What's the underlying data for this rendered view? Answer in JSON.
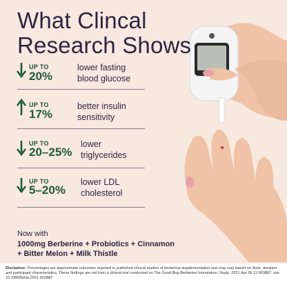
{
  "header": {
    "title": [
      "What Clincal",
      "Research Shows"
    ]
  },
  "stats": [
    {
      "prefix": "UP TO",
      "value": "20%",
      "description": [
        "lower fasting",
        "blood glucose"
      ]
    },
    {
      "prefix": "UP TO",
      "value": "17%",
      "description": [
        "better insulin",
        "sensitivity"
      ]
    },
    {
      "prefix": "UP TO",
      "value": "20–25%",
      "description": [
        "lower",
        "triglycerides"
      ]
    },
    {
      "prefix": "UP TO",
      "value": "5–20%",
      "description": [
        "lower LDL",
        "cholesterol"
      ]
    }
  ],
  "formula": {
    "intro": "Now with",
    "ingredients": [
      "1000mg Berberine + Probiotics + Cinnamon",
      "+ Bitter Melon + Milk Thistle"
    ]
  },
  "disclaimer": {
    "label": "Disclaimer:",
    "text": "Percentages are approximate outcomes reported in published clinical studies of berberine supplementation and may vary based on dose, duration and participant characteristics. These findings are not from a clinical trial conducted on The Good Bug Berberine formulation. Study: 2021 Apr 26:12:653887. doi: 10.3389/fphar.2021.653887"
  }
}
